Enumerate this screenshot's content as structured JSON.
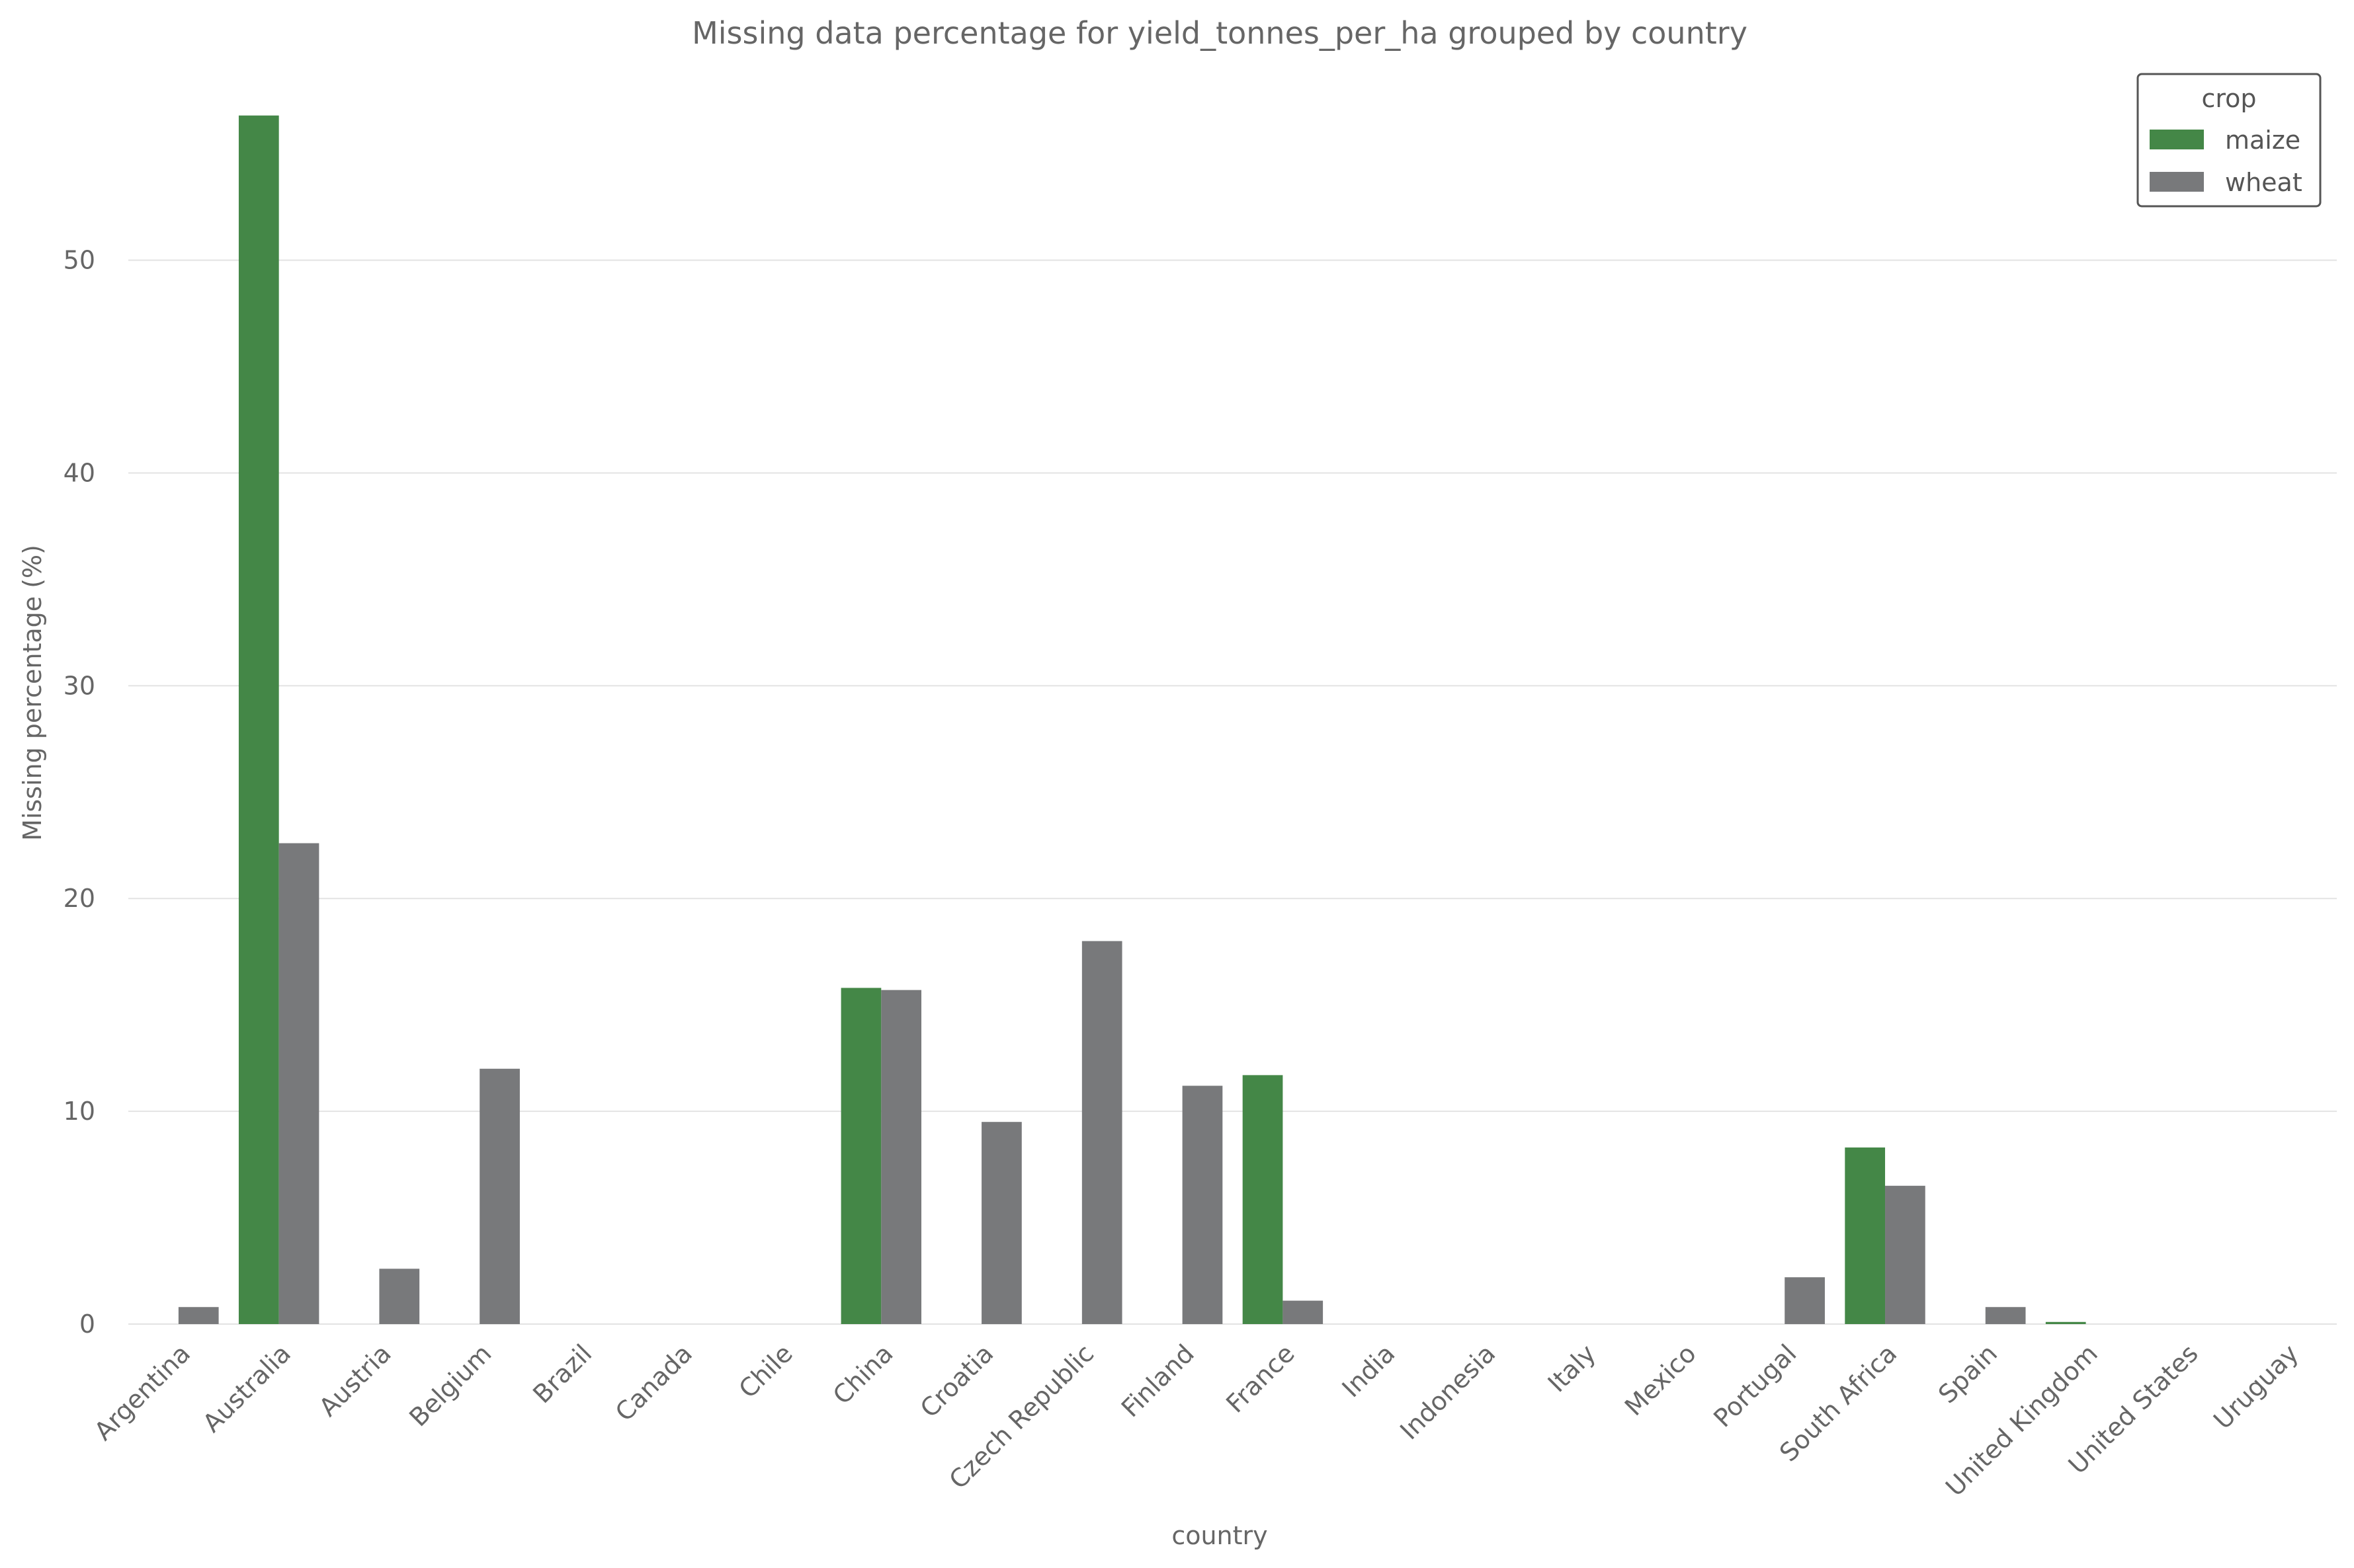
{
  "chart_data": {
    "type": "bar",
    "title": "Missing data percentage for yield_tonnes_per_ha grouped by country",
    "xlabel": "country",
    "ylabel": "Missing percentage (%)",
    "ylim": [
      0,
      58.5
    ],
    "yticks": [
      0,
      10,
      20,
      30,
      40,
      50
    ],
    "grid": "horizontal",
    "legend_placement": "top-right",
    "legend_title": "crop",
    "categories": [
      "Argentina",
      "Australia",
      "Austria",
      "Belgium",
      "Brazil",
      "Canada",
      "Chile",
      "China",
      "Croatia",
      "Czech Republic",
      "Finland",
      "France",
      "India",
      "Indonesia",
      "Italy",
      "Mexico",
      "Portugal",
      "South Africa",
      "Spain",
      "United Kingdom",
      "United States",
      "Uruguay"
    ],
    "series": [
      {
        "name": "maize",
        "color": "#448747",
        "values": [
          0,
          56.8,
          0,
          0,
          0,
          0,
          0,
          15.8,
          0,
          0,
          0,
          11.7,
          0,
          0,
          0,
          0,
          0,
          8.3,
          0,
          0.1,
          0,
          0
        ]
      },
      {
        "name": "wheat",
        "color": "#78797b",
        "values": [
          0.8,
          22.6,
          2.6,
          12.0,
          0,
          0,
          0,
          15.7,
          9.5,
          18.0,
          11.2,
          1.1,
          0,
          0,
          0,
          0,
          2.2,
          6.5,
          0.8,
          0,
          0,
          0
        ]
      }
    ]
  }
}
